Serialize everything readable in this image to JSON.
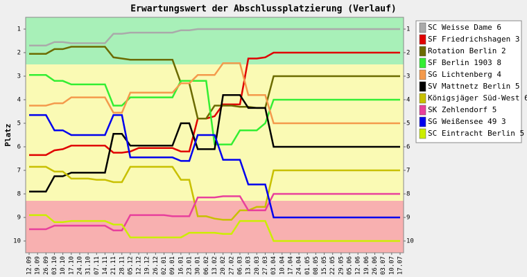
{
  "chart_data": {
    "type": "line",
    "title": "Erwartungswert der Abschlussplatzierung (Verlauf)",
    "y_label": "Platz",
    "categories": [
      "12.09",
      "19.09",
      "26.09",
      "03.10",
      "10.10",
      "17.10",
      "24.10",
      "31.10",
      "07.11",
      "14.11",
      "21.11",
      "28.11",
      "05.12",
      "12.12",
      "19.12",
      "26.12",
      "02.01",
      "09.01",
      "16.01",
      "23.01",
      "30.01",
      "06.02",
      "13.02",
      "20.02",
      "27.02",
      "06.03",
      "13.03",
      "20.03",
      "27.03",
      "03.04",
      "10.04",
      "17.04",
      "24.04",
      "01.05",
      "08.05",
      "15.05",
      "22.05",
      "29.05",
      "05.06",
      "12.06",
      "19.06",
      "26.06",
      "03.07",
      "10.07",
      "17.07"
    ],
    "ylim": [
      10.5,
      0.5
    ],
    "yticks": [
      1,
      2,
      3,
      4,
      5,
      6,
      7,
      8,
      9,
      10
    ],
    "series": [
      {
        "name": "SC Weisse Dame 6",
        "color": "#aaaaaa",
        "values": [
          1.7,
          1.7,
          1.7,
          1.55,
          1.55,
          1.6,
          1.6,
          1.6,
          1.6,
          1.6,
          1.2,
          1.2,
          1.15,
          1.15,
          1.15,
          1.15,
          1.15,
          1.15,
          1.05,
          1.05,
          1,
          1,
          1,
          1,
          1,
          1,
          1,
          1,
          1,
          1,
          1,
          1,
          1,
          1,
          1,
          1,
          1,
          1,
          1,
          1,
          1,
          1,
          1,
          1,
          1
        ]
      },
      {
        "name": "SF Friedrichshagen 3",
        "color": "#e00000",
        "values": [
          6.35,
          6.35,
          6.35,
          6.15,
          6.1,
          5.95,
          5.95,
          5.95,
          5.95,
          5.95,
          6.25,
          6.25,
          6.2,
          6.05,
          6.05,
          6.05,
          6.05,
          6.05,
          6.2,
          6.2,
          4.8,
          4.8,
          4.7,
          4.2,
          4.2,
          4.2,
          2.25,
          2.25,
          2.2,
          2,
          2,
          2,
          2,
          2,
          2,
          2,
          2,
          2,
          2,
          2,
          2,
          2,
          2,
          2,
          2
        ]
      },
      {
        "name": "Rotation Berlin 2",
        "color": "#6b6b00",
        "values": [
          2.05,
          2.05,
          2.05,
          1.85,
          1.85,
          1.75,
          1.75,
          1.75,
          1.75,
          1.75,
          2.2,
          2.25,
          2.3,
          2.3,
          2.3,
          2.3,
          2.3,
          2.3,
          3.3,
          3.3,
          4.8,
          4.8,
          4.25,
          4.25,
          4.25,
          4.3,
          4.3,
          4.35,
          4.35,
          3,
          3,
          3,
          3,
          3,
          3,
          3,
          3,
          3,
          3,
          3,
          3,
          3,
          3,
          3,
          3
        ]
      },
      {
        "name": "SF Berlin 1903 8",
        "color": "#33ee33",
        "values": [
          2.95,
          2.95,
          2.95,
          3.2,
          3.2,
          3.35,
          3.35,
          3.35,
          3.35,
          3.35,
          4.25,
          4.25,
          3.9,
          3.9,
          3.9,
          3.9,
          3.9,
          3.9,
          3.2,
          3.2,
          3.2,
          3.2,
          5.9,
          5.9,
          5.9,
          5.3,
          5.3,
          5.3,
          5,
          4,
          4,
          4,
          4,
          4,
          4,
          4,
          4,
          4,
          4,
          4,
          4,
          4,
          4,
          4,
          4
        ]
      },
      {
        "name": "SG Lichtenberg 4",
        "color": "#f49a4c",
        "values": [
          4.25,
          4.25,
          4.25,
          4.15,
          4.15,
          3.9,
          3.9,
          3.9,
          3.9,
          3.9,
          4.55,
          4.55,
          3.7,
          3.7,
          3.7,
          3.7,
          3.7,
          3.7,
          3.3,
          3.3,
          2.95,
          2.95,
          2.95,
          2.45,
          2.45,
          2.45,
          3.8,
          3.8,
          3.8,
          5,
          5,
          5,
          5,
          5,
          5,
          5,
          5,
          5,
          5,
          5,
          5,
          5,
          5,
          5,
          5
        ]
      },
      {
        "name": "SV Mattnetz Berlin 5",
        "color": "#000000",
        "values": [
          7.9,
          7.9,
          7.9,
          7.25,
          7.25,
          7.1,
          7.1,
          7.1,
          7.1,
          7.1,
          5.45,
          5.45,
          5.95,
          5.95,
          5.95,
          5.95,
          5.95,
          5.95,
          5,
          5,
          6.1,
          6.1,
          6.1,
          3.8,
          3.8,
          3.8,
          4.35,
          4.35,
          4.35,
          6,
          6,
          6,
          6,
          6,
          6,
          6,
          6,
          6,
          6,
          6,
          6,
          6,
          6,
          6,
          6
        ]
      },
      {
        "name": "Königsjäger Süd-West 6",
        "color": "#c8c000",
        "values": [
          6.85,
          6.85,
          6.85,
          7.05,
          7.05,
          7.35,
          7.35,
          7.35,
          7.4,
          7.4,
          7.5,
          7.5,
          6.85,
          6.85,
          6.85,
          6.85,
          6.85,
          6.85,
          7.4,
          7.4,
          8.95,
          8.95,
          9.05,
          9.1,
          9.1,
          8.7,
          8.7,
          8.55,
          8.55,
          7,
          7,
          7,
          7,
          7,
          7,
          7,
          7,
          7,
          7,
          7,
          7,
          7,
          7,
          7,
          7
        ]
      },
      {
        "name": "SK Zehlendorf 5",
        "color": "#e8409c",
        "values": [
          9.5,
          9.5,
          9.5,
          9.35,
          9.35,
          9.35,
          9.35,
          9.35,
          9.35,
          9.35,
          9.55,
          9.55,
          8.9,
          8.9,
          8.9,
          8.9,
          8.9,
          8.95,
          8.95,
          8.95,
          8.15,
          8.15,
          8.15,
          8.1,
          8.1,
          8.1,
          8.7,
          8.7,
          8.7,
          8,
          8,
          8,
          8,
          8,
          8,
          8,
          8,
          8,
          8,
          8,
          8,
          8,
          8,
          8,
          8
        ]
      },
      {
        "name": "SG Weißensee 49 3",
        "color": "#0000ee",
        "values": [
          4.65,
          4.65,
          4.65,
          5.3,
          5.3,
          5.5,
          5.5,
          5.5,
          5.5,
          5.5,
          4.65,
          4.65,
          6.45,
          6.45,
          6.45,
          6.45,
          6.45,
          6.45,
          6.6,
          6.6,
          5.5,
          5.5,
          5.5,
          6.55,
          6.55,
          6.55,
          7.6,
          7.6,
          7.6,
          9,
          9,
          9,
          9,
          9,
          9,
          9,
          9,
          9,
          9,
          9,
          9,
          9,
          9,
          9,
          9
        ]
      },
      {
        "name": "SC Eintracht Berlin 5",
        "color": "#ccee00",
        "values": [
          8.9,
          8.9,
          8.9,
          9.2,
          9.2,
          9.15,
          9.15,
          9.15,
          9.15,
          9.15,
          9.3,
          9.3,
          9.85,
          9.85,
          9.85,
          9.85,
          9.85,
          9.85,
          9.85,
          9.65,
          9.65,
          9.65,
          9.65,
          9.7,
          9.7,
          9.15,
          9.15,
          9.15,
          9.15,
          10,
          10,
          10,
          10,
          10,
          10,
          10,
          10,
          10,
          10,
          10,
          10,
          10,
          10,
          10,
          10
        ]
      }
    ]
  }
}
